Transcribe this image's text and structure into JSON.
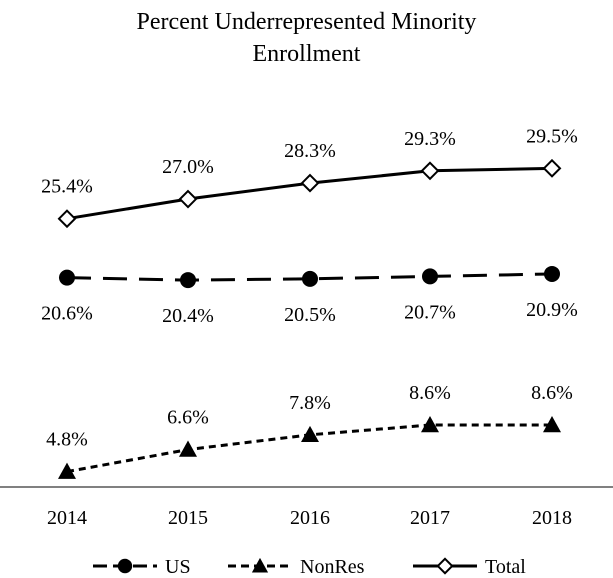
{
  "chart_data": {
    "type": "line",
    "title_lines": [
      "Percent Underrepresented Minority",
      "Enrollment"
    ],
    "categories": [
      "2014",
      "2015",
      "2016",
      "2017",
      "2018"
    ],
    "series": [
      {
        "name": "Total",
        "values": [
          25.4,
          27.0,
          28.3,
          29.3,
          29.5
        ],
        "labels": [
          "25.4%",
          "27.0%",
          "28.3%",
          "29.3%",
          "29.5%"
        ],
        "line_style": "solid",
        "marker": "diamond-open",
        "label_position": "above"
      },
      {
        "name": "US",
        "values": [
          20.6,
          20.4,
          20.5,
          20.7,
          20.9
        ],
        "labels": [
          "20.6%",
          "20.4%",
          "20.5%",
          "20.7%",
          "20.9%"
        ],
        "line_style": "long-dash",
        "marker": "circle-filled",
        "label_position": "below"
      },
      {
        "name": "NonRes",
        "values": [
          4.8,
          6.6,
          7.8,
          8.6,
          8.6
        ],
        "labels": [
          "4.8%",
          "6.6%",
          "7.8%",
          "8.6%",
          "8.6%"
        ],
        "line_style": "short-dash",
        "marker": "triangle-filled",
        "label_position": "above"
      }
    ],
    "legend": {
      "position": "bottom",
      "order": [
        "US",
        "NonRes",
        "Total"
      ]
    },
    "y_axis_visible": false,
    "gridlines": false,
    "colors": {
      "line": "#000000",
      "background": "#ffffff"
    }
  }
}
